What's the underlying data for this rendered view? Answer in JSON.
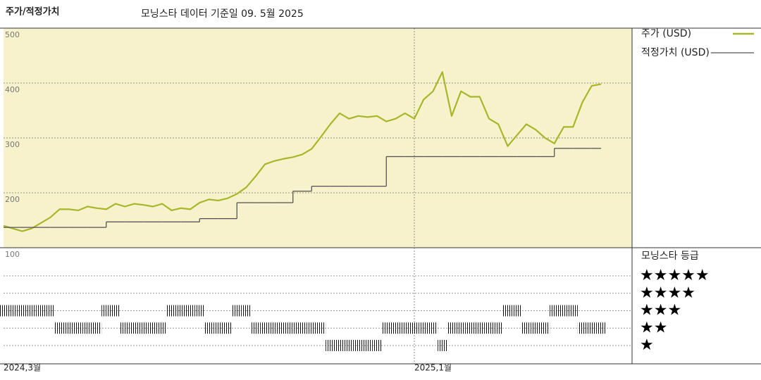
{
  "header": {
    "title": "주가/적정가치",
    "subtitle": "모닝스타 데이터 기준일 09. 5월 2025"
  },
  "chart_data": [
    {
      "type": "line",
      "categories": [
        "2024,3월",
        null,
        null,
        null,
        null,
        null,
        null,
        null,
        null,
        null,
        null,
        null,
        null,
        null,
        null,
        null,
        null,
        null,
        null,
        null,
        null,
        null,
        null,
        null,
        null,
        null,
        null,
        null,
        null,
        null,
        null,
        null,
        null,
        null,
        null,
        null,
        null,
        null,
        null,
        null,
        null,
        null,
        null,
        null,
        "2025,1월",
        null,
        null,
        null,
        null,
        null,
        null,
        null,
        null,
        null,
        null,
        null,
        null,
        null,
        null,
        null,
        null,
        null,
        null,
        null,
        null
      ],
      "series": [
        {
          "name": "주가 (USD)",
          "color": "#a9b62a",
          "values": [
            140,
            135,
            130,
            135,
            145,
            155,
            170,
            170,
            168,
            175,
            172,
            170,
            180,
            175,
            180,
            178,
            175,
            180,
            168,
            172,
            170,
            182,
            188,
            186,
            190,
            198,
            210,
            230,
            252,
            258,
            262,
            265,
            270,
            280,
            302,
            325,
            345,
            335,
            340,
            338,
            340,
            330,
            335,
            345,
            335,
            370,
            385,
            420,
            340,
            385,
            375,
            375,
            335,
            325,
            285,
            305,
            325,
            315,
            300,
            290,
            320,
            320,
            365,
            395,
            398
          ]
        },
        {
          "name": "적정가치 (USD)",
          "color": "#555555",
          "step": true,
          "values": [
            137,
            137,
            137,
            137,
            137,
            137,
            137,
            137,
            137,
            137,
            137,
            147,
            147,
            147,
            147,
            147,
            147,
            147,
            147,
            147,
            147,
            153,
            153,
            153,
            153,
            182,
            182,
            182,
            182,
            182,
            182,
            203,
            203,
            212,
            212,
            212,
            212,
            212,
            212,
            212,
            212,
            266,
            266,
            266,
            266,
            266,
            266,
            266,
            266,
            266,
            266,
            266,
            266,
            266,
            266,
            266,
            266,
            266,
            266,
            281,
            281,
            281,
            281,
            281,
            281
          ]
        }
      ],
      "ylim": [
        100,
        500
      ],
      "yticks": [
        100,
        200,
        300,
        400,
        500
      ],
      "grid": true
    },
    {
      "type": "rating",
      "title": "모닝스타 등급",
      "levels": [
        "★★★★★",
        "★★★★",
        "★★★",
        "★★",
        "★"
      ],
      "values": [
        3,
        3,
        3,
        3,
        3,
        3,
        2,
        2,
        2,
        2,
        2,
        3,
        3,
        2,
        2,
        2,
        2,
        2,
        3,
        3,
        3,
        3,
        2,
        2,
        2,
        3,
        3,
        2,
        2,
        2,
        2,
        2,
        2,
        2,
        2,
        1,
        1,
        1,
        1,
        1,
        1,
        2,
        2,
        2,
        2,
        2,
        2,
        1,
        2,
        2,
        2,
        2,
        2,
        2,
        3,
        3,
        2,
        2,
        2,
        3,
        3,
        3,
        2,
        2,
        2
      ]
    }
  ]
}
